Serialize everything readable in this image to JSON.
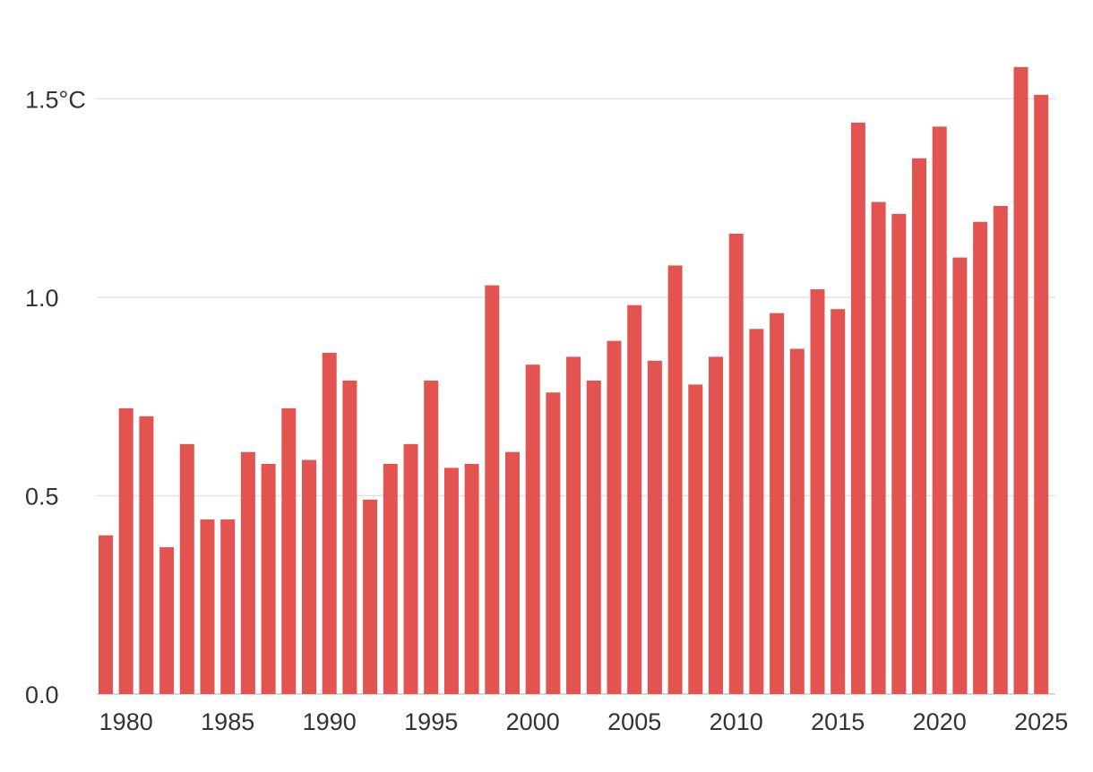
{
  "chart_data": {
    "type": "bar",
    "title": "",
    "xlabel": "",
    "ylabel": "",
    "categories": [
      1979,
      1980,
      1981,
      1982,
      1983,
      1984,
      1985,
      1986,
      1987,
      1988,
      1989,
      1990,
      1991,
      1992,
      1993,
      1994,
      1995,
      1996,
      1997,
      1998,
      1999,
      2000,
      2001,
      2002,
      2003,
      2004,
      2005,
      2006,
      2007,
      2008,
      2009,
      2010,
      2011,
      2012,
      2013,
      2014,
      2015,
      2016,
      2017,
      2018,
      2019,
      2020,
      2021,
      2022,
      2023,
      2024,
      2025
    ],
    "values": [
      0.4,
      0.72,
      0.7,
      0.37,
      0.63,
      0.44,
      0.44,
      0.61,
      0.58,
      0.72,
      0.59,
      0.86,
      0.79,
      0.49,
      0.58,
      0.63,
      0.79,
      0.57,
      0.58,
      1.03,
      0.61,
      0.83,
      0.76,
      0.85,
      0.79,
      0.89,
      0.98,
      0.84,
      1.08,
      0.78,
      0.85,
      1.16,
      0.92,
      0.96,
      0.87,
      1.02,
      0.97,
      1.44,
      1.24,
      1.21,
      1.35,
      1.43,
      1.1,
      1.19,
      1.23,
      1.58,
      1.51
    ],
    "ylim": [
      0,
      1.6
    ],
    "y_ticks": [
      0,
      0.5,
      1.0,
      1.5
    ],
    "y_tick_labels": [
      "0.0",
      "0.5",
      "1.0",
      "1.5°C"
    ],
    "x_ticks": [
      1980,
      1985,
      1990,
      1995,
      2000,
      2005,
      2010,
      2015,
      2020,
      2025
    ],
    "x_tick_labels": [
      "1980",
      "1985",
      "1990",
      "1995",
      "2000",
      "2005",
      "2010",
      "2015",
      "2020",
      "2025"
    ],
    "grid": "horizontal",
    "bar_color": "#e35350"
  }
}
